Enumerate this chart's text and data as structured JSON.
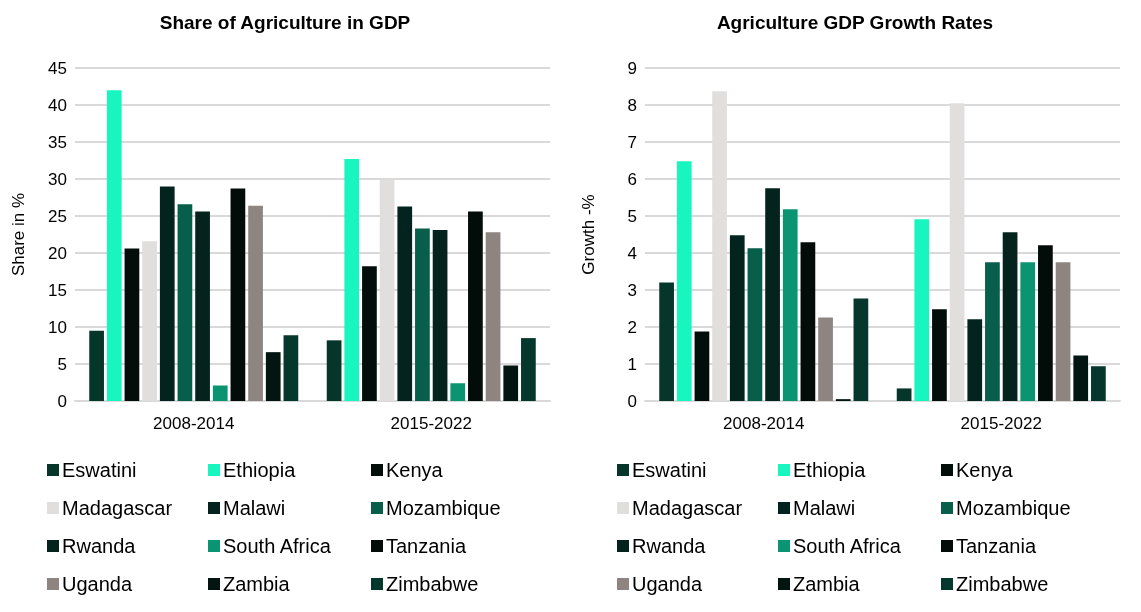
{
  "chart_data": [
    {
      "type": "bar",
      "title": "Share of Agriculture in GDP",
      "ylabel": "Share in %",
      "categories": [
        "2008-2014",
        "2015-2022"
      ],
      "ylim": [
        0,
        45
      ],
      "yticks": [
        0,
        5,
        10,
        15,
        20,
        25,
        30,
        35,
        40,
        45
      ],
      "grid": "y",
      "legend": "bottom",
      "series": [
        {
          "name": "Eswatini",
          "color": "#06352a",
          "values": [
            9.5,
            8.2
          ]
        },
        {
          "name": "Ethiopia",
          "color": "#19f5be",
          "values": [
            42.0,
            32.7
          ]
        },
        {
          "name": "Kenya",
          "color": "#030e0b",
          "values": [
            20.6,
            18.2
          ]
        },
        {
          "name": "Madagascar",
          "color": "#e0dfdd",
          "values": [
            21.6,
            29.9
          ]
        },
        {
          "name": "Malawi",
          "color": "#03241e",
          "values": [
            29.0,
            26.3
          ]
        },
        {
          "name": "Mozambique",
          "color": "#075e4b",
          "values": [
            26.6,
            23.3
          ]
        },
        {
          "name": "Rwanda",
          "color": "#04231d",
          "values": [
            25.6,
            23.1
          ]
        },
        {
          "name": "South Africa",
          "color": "#0a9472",
          "values": [
            2.1,
            2.4
          ]
        },
        {
          "name": "Tanzania",
          "color": "#030c09",
          "values": [
            28.7,
            25.6
          ]
        },
        {
          "name": "Uganda",
          "color": "#8e8581",
          "values": [
            26.4,
            22.8
          ]
        },
        {
          "name": "Zambia",
          "color": "#031511",
          "values": [
            6.6,
            4.8
          ]
        },
        {
          "name": "Zimbabwe",
          "color": "#06372c",
          "values": [
            8.9,
            8.5
          ]
        }
      ]
    },
    {
      "type": "bar",
      "title": "Agriculture GDP Growth Rates",
      "ylabel": "Growth -%",
      "categories": [
        "2008-2014",
        "2015-2022"
      ],
      "ylim": [
        0,
        9
      ],
      "yticks": [
        0,
        1,
        2,
        3,
        4,
        5,
        6,
        7,
        8,
        9
      ],
      "grid": "y",
      "legend": "bottom",
      "series": [
        {
          "name": "Eswatini",
          "color": "#06352a",
          "values": [
            3.2,
            0.34
          ]
        },
        {
          "name": "Ethiopia",
          "color": "#19f5be",
          "values": [
            6.48,
            4.91
          ]
        },
        {
          "name": "Kenya",
          "color": "#030e0b",
          "values": [
            1.88,
            2.48
          ]
        },
        {
          "name": "Madagascar",
          "color": "#e0dfdd",
          "values": [
            8.37,
            8.05
          ]
        },
        {
          "name": "Malawi",
          "color": "#03241e",
          "values": [
            4.48,
            2.21
          ]
        },
        {
          "name": "Mozambique",
          "color": "#075e4b",
          "values": [
            4.13,
            3.75
          ]
        },
        {
          "name": "Rwanda",
          "color": "#04231d",
          "values": [
            5.75,
            4.56
          ]
        },
        {
          "name": "South Africa",
          "color": "#0a9472",
          "values": [
            5.18,
            3.75
          ]
        },
        {
          "name": "Tanzania",
          "color": "#030c09",
          "values": [
            4.29,
            4.21
          ]
        },
        {
          "name": "Uganda",
          "color": "#8e8581",
          "values": [
            2.26,
            3.75
          ]
        },
        {
          "name": "Zambia",
          "color": "#031511",
          "values": [
            0.05,
            1.23
          ]
        },
        {
          "name": "Zimbabwe",
          "color": "#06372c",
          "values": [
            2.77,
            0.94
          ]
        }
      ]
    }
  ]
}
